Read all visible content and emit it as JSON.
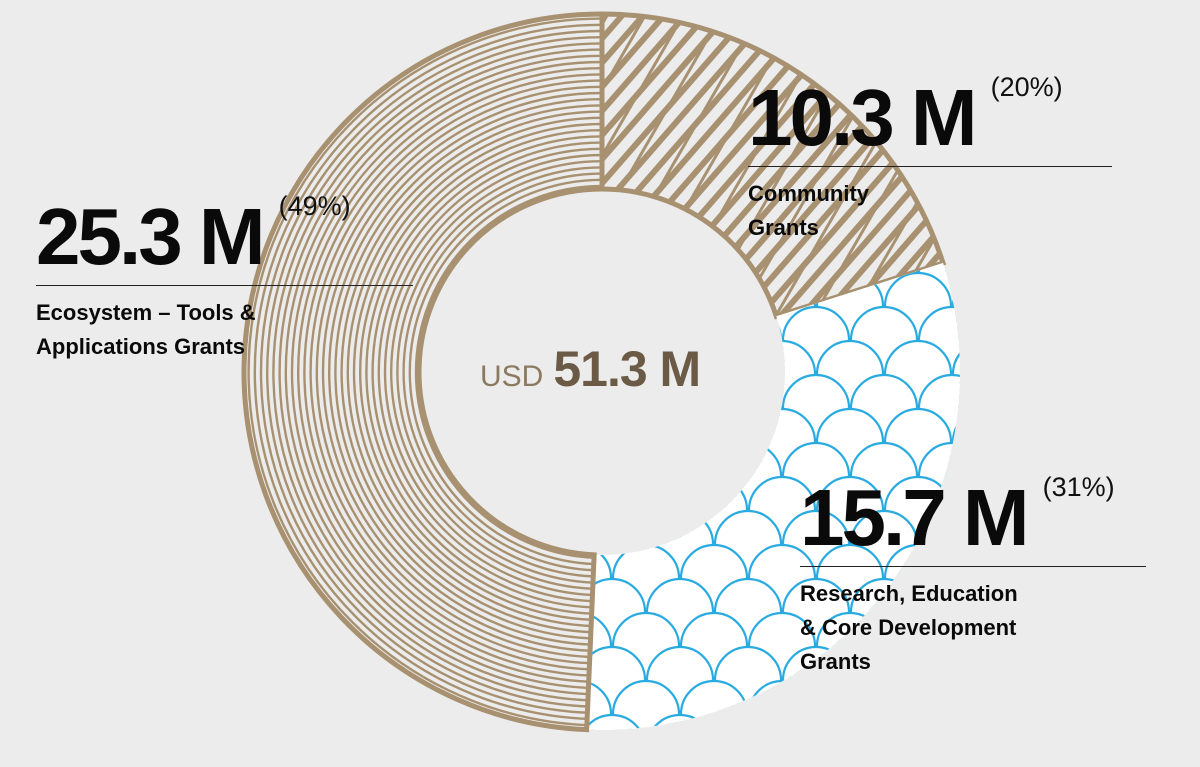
{
  "chart_data": {
    "type": "pie",
    "center_label": {
      "currency": "USD",
      "total": "51.3 M"
    },
    "slices": [
      {
        "label": "Community\nGrants",
        "value": 10.3,
        "amount_label": "10.3 M",
        "percent_label": "(20%)",
        "color": "#a89170",
        "pattern": "scribble-hatch"
      },
      {
        "label": "Research, Education\n& Core Development\nGrants",
        "value": 15.7,
        "amount_label": "15.7 M",
        "percent_label": "(31%)",
        "color": "#29abe2",
        "pattern": "scallop-waves"
      },
      {
        "label": "Ecosystem – Tools &\nApplications Grants",
        "value": 25.3,
        "amount_label": "25.3 M",
        "percent_label": "(49%)",
        "color": "#a89170",
        "pattern": "concentric-rings"
      }
    ]
  },
  "colors": {
    "background": "#ececec",
    "brown": "#a89170",
    "blue": "#29abe2",
    "center_text": "#6b5a45"
  }
}
